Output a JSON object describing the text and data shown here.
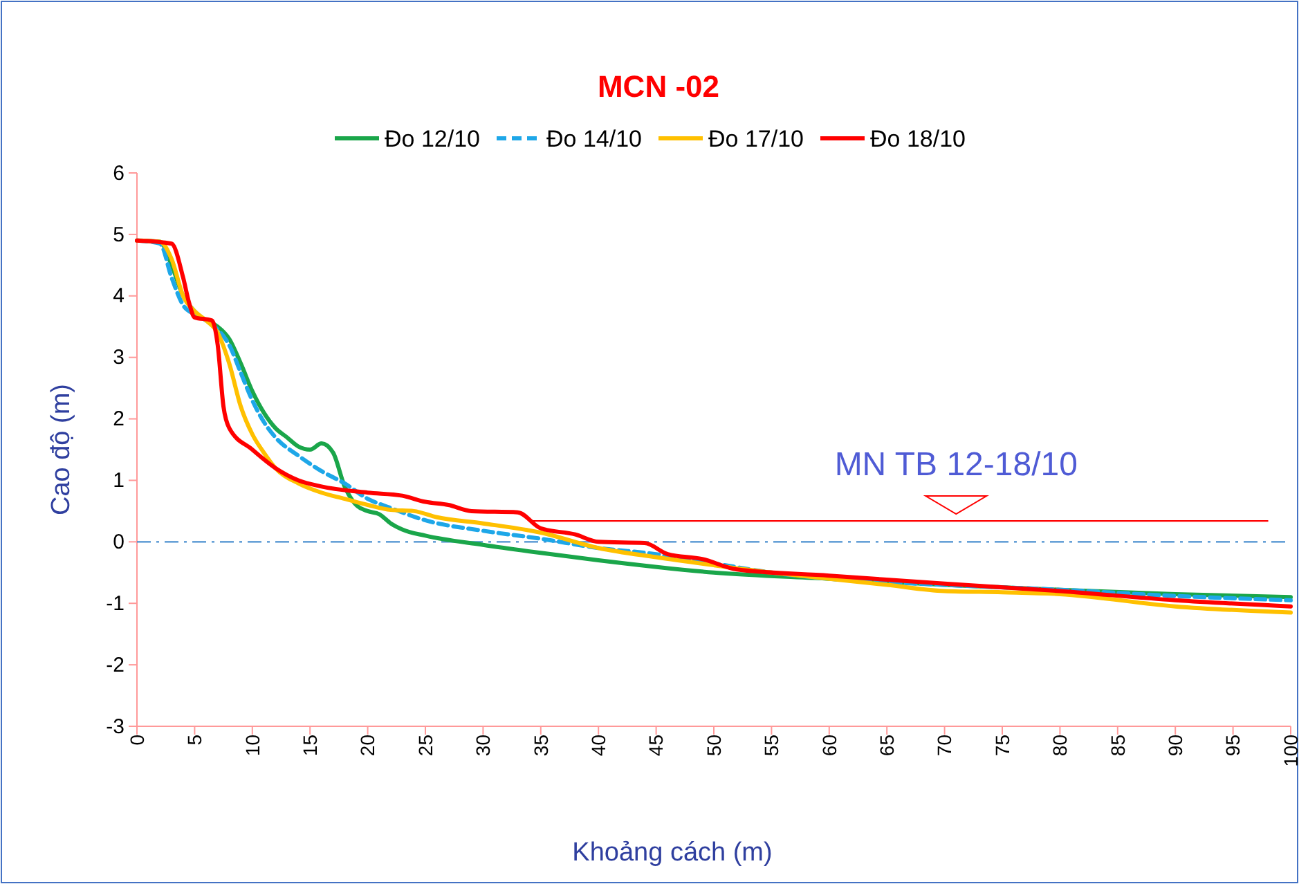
{
  "chart_data": {
    "type": "line",
    "title": "MCN -02",
    "xlabel": "Khoảng cách (m)",
    "ylabel": "Cao độ (m)",
    "xlim": [
      0,
      100
    ],
    "xticks": [
      0,
      5,
      10,
      15,
      20,
      25,
      30,
      35,
      40,
      45,
      50,
      55,
      60,
      65,
      70,
      75,
      80,
      85,
      90,
      95,
      100
    ],
    "ylim": [
      -3,
      6
    ],
    "yticks": [
      -3,
      -2,
      -1,
      0,
      1,
      2,
      3,
      4,
      5,
      6
    ],
    "grid": false,
    "legend": "top",
    "marker": "none",
    "series": [
      {
        "name": "Đo 12/10",
        "color": "#1aa64a",
        "line_style": "solid",
        "x": [
          0,
          2,
          3,
          4,
          5,
          6,
          7,
          8,
          9,
          10,
          11,
          12,
          13,
          14,
          15,
          16,
          17,
          18,
          19,
          20,
          21,
          22,
          23,
          25,
          30,
          35,
          40,
          50,
          60,
          70,
          80,
          90,
          100
        ],
        "values": [
          4.9,
          4.88,
          4.5,
          4.0,
          3.75,
          3.6,
          3.5,
          3.3,
          2.9,
          2.45,
          2.1,
          1.85,
          1.7,
          1.55,
          1.5,
          1.6,
          1.45,
          0.9,
          0.6,
          0.5,
          0.45,
          0.3,
          0.2,
          0.1,
          -0.05,
          -0.18,
          -0.3,
          -0.5,
          -0.6,
          -0.7,
          -0.78,
          -0.85,
          -0.9
        ]
      },
      {
        "name": "Đo 14/10",
        "color": "#1ea7e8",
        "line_style": "dashed",
        "x": [
          0,
          2,
          3,
          4,
          5,
          6,
          7,
          8,
          9,
          10,
          11,
          12,
          14,
          16,
          18,
          20,
          22,
          25,
          30,
          35,
          40,
          45,
          50,
          55,
          60,
          70,
          80,
          90,
          100
        ],
        "values": [
          4.9,
          4.85,
          4.3,
          3.85,
          3.7,
          3.6,
          3.45,
          3.2,
          2.75,
          2.3,
          1.95,
          1.7,
          1.4,
          1.15,
          0.95,
          0.7,
          0.55,
          0.35,
          0.18,
          0.05,
          -0.1,
          -0.2,
          -0.35,
          -0.5,
          -0.6,
          -0.7,
          -0.78,
          -0.88,
          -0.95
        ]
      },
      {
        "name": "Đo 17/10",
        "color": "#ffc000",
        "line_style": "solid",
        "x": [
          0,
          2,
          3,
          4,
          5,
          6,
          7,
          8,
          9,
          10,
          11,
          12,
          14,
          16,
          18,
          20,
          22,
          24,
          26,
          30,
          35,
          40,
          45,
          50,
          55,
          60,
          65,
          70,
          75,
          80,
          90,
          100
        ],
        "values": [
          4.9,
          4.88,
          4.6,
          4.0,
          3.75,
          3.6,
          3.4,
          2.9,
          2.2,
          1.75,
          1.45,
          1.2,
          0.95,
          0.8,
          0.7,
          0.6,
          0.52,
          0.5,
          0.4,
          0.3,
          0.15,
          -0.1,
          -0.25,
          -0.38,
          -0.5,
          -0.6,
          -0.7,
          -0.8,
          -0.82,
          -0.85,
          -1.05,
          -1.15
        ]
      },
      {
        "name": "Đo 18/10",
        "color": "#ff0000",
        "line_style": "solid",
        "x": [
          0,
          3,
          4,
          4.5,
          5,
          6.5,
          7,
          7.5,
          8,
          10,
          12,
          14,
          16,
          20,
          23,
          25,
          27,
          29,
          33,
          35,
          38,
          40,
          44,
          46,
          49,
          52,
          60,
          70,
          80,
          90,
          100
        ],
        "values": [
          4.9,
          4.85,
          4.3,
          3.9,
          3.65,
          3.6,
          3.2,
          2.2,
          1.85,
          1.5,
          1.2,
          1.0,
          0.9,
          0.8,
          0.75,
          0.65,
          0.6,
          0.5,
          0.48,
          0.22,
          0.12,
          0.0,
          -0.02,
          -0.2,
          -0.28,
          -0.45,
          -0.55,
          -0.68,
          -0.8,
          -0.95,
          -1.05
        ]
      },
      {
        "color": "#ff0000",
        "line_style": "solid",
        "x": [
          34,
          98
        ],
        "values": [
          0.34,
          0.34
        ]
      }
    ],
    "ref_lines": [
      {
        "axis": "y",
        "value": 0,
        "color": "#4a8fd0",
        "line_style": "dashdot"
      }
    ],
    "annotations": [
      {
        "text": "MN TB 12-18/10",
        "x": 71,
        "y": 0.34
      }
    ]
  }
}
